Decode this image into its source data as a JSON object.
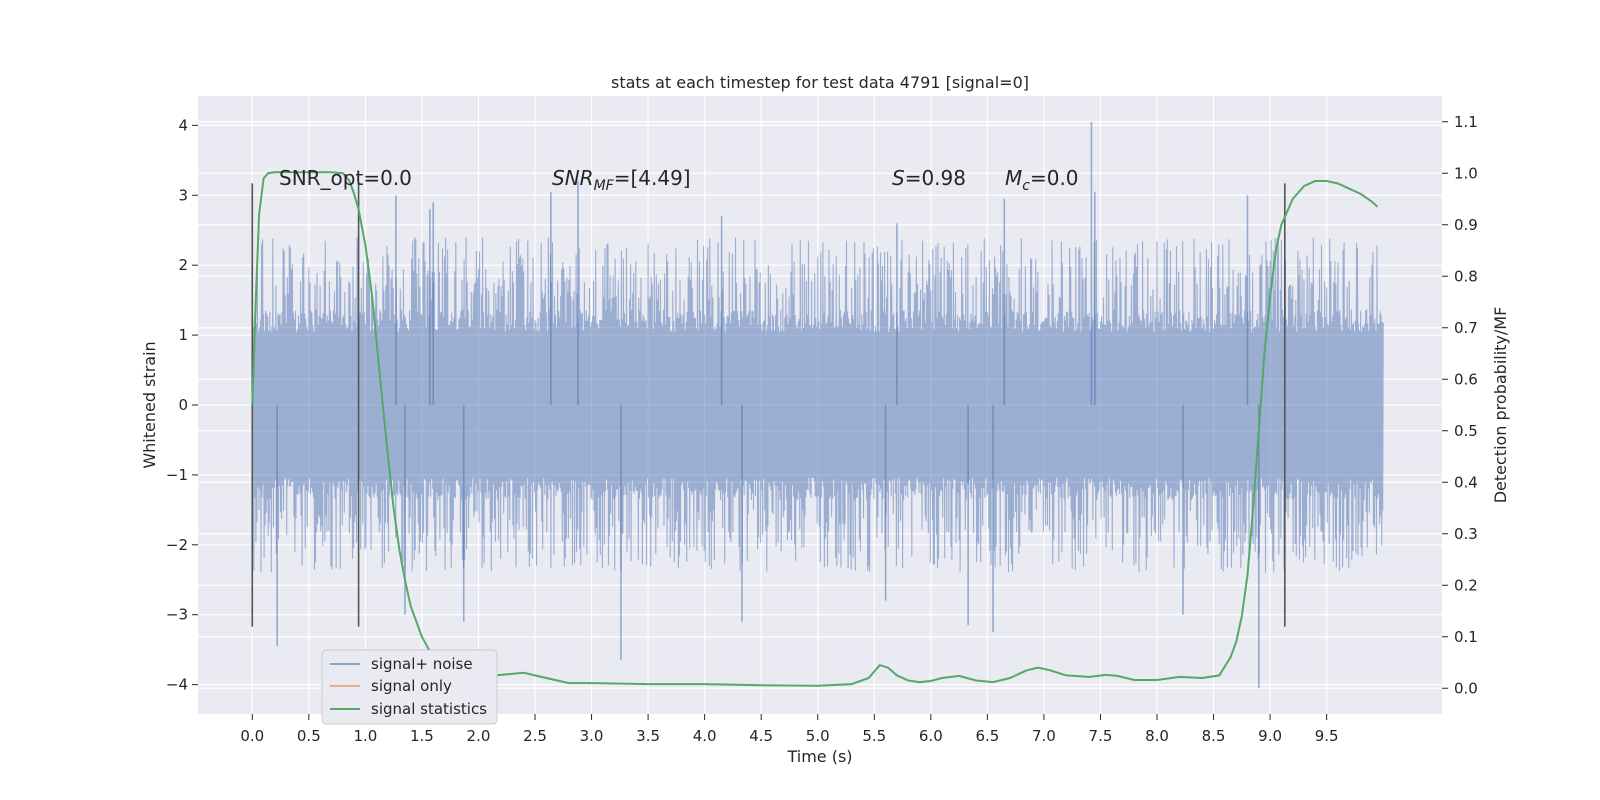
{
  "chart_data": {
    "type": "line",
    "title": "stats at each timestep for test data 4791 [signal=0]",
    "xlabel": "Time (s)",
    "ylabel": "Whitened strain",
    "y2label": "Detection probability/MF",
    "xlim": [
      -0.48,
      10.52
    ],
    "ylim": [
      -4.42,
      4.42
    ],
    "y2lim": [
      -0.05,
      1.15
    ],
    "xticks": [
      "0.0",
      "0.5",
      "1.0",
      "1.5",
      "2.0",
      "2.5",
      "3.0",
      "3.5",
      "4.0",
      "4.5",
      "5.0",
      "5.5",
      "6.0",
      "6.5",
      "7.0",
      "7.5",
      "8.0",
      "8.5",
      "9.0",
      "9.5"
    ],
    "yticks": [
      "−4",
      "−3",
      "−2",
      "−1",
      "0",
      "1",
      "2",
      "3",
      "4"
    ],
    "y2ticks": [
      "0.0",
      "0.1",
      "0.2",
      "0.3",
      "0.4",
      "0.5",
      "0.6",
      "0.7",
      "0.8",
      "0.9",
      "1.0",
      "1.1"
    ],
    "grid": true,
    "legend_position": "lower-left",
    "annotations": {
      "snr_opt": "SNR_opt=0.0",
      "snr_mf_prefix": "SNR",
      "snr_mf_sub": "MF",
      "snr_mf_suffix": "=[4.49]",
      "s_var": "S",
      "s_value": "=0.98",
      "mc_var": "M",
      "mc_sub": "c",
      "mc_value": "=0.0"
    },
    "vertical_markers_x": [
      0.0,
      0.94,
      9.13
    ],
    "noise_envelope": {
      "x_start": 0.0,
      "x_end": 10.0,
      "dense_band": [
        -1.3,
        1.3
      ],
      "typical_peak_range": [
        1.5,
        2.4
      ],
      "upper_spikes": [
        {
          "x": 1.27,
          "y": 3.0
        },
        {
          "x": 1.57,
          "y": 2.8
        },
        {
          "x": 1.6,
          "y": 2.9
        },
        {
          "x": 2.64,
          "y": 3.05
        },
        {
          "x": 2.88,
          "y": 3.2
        },
        {
          "x": 7.42,
          "y": 4.05
        },
        {
          "x": 7.45,
          "y": 3.05
        },
        {
          "x": 6.65,
          "y": 2.95
        },
        {
          "x": 8.8,
          "y": 3.0
        },
        {
          "x": 4.15,
          "y": 2.7
        },
        {
          "x": 5.7,
          "y": 2.6
        }
      ],
      "lower_spikes": [
        {
          "x": 0.22,
          "y": -3.45
        },
        {
          "x": 1.87,
          "y": -3.1
        },
        {
          "x": 3.26,
          "y": -3.65
        },
        {
          "x": 4.33,
          "y": -3.1
        },
        {
          "x": 6.33,
          "y": -3.15
        },
        {
          "x": 6.55,
          "y": -3.25
        },
        {
          "x": 8.23,
          "y": -3.0
        },
        {
          "x": 8.9,
          "y": -4.05
        },
        {
          "x": 5.6,
          "y": -2.8
        },
        {
          "x": 1.35,
          "y": -3.0
        }
      ]
    },
    "series": [
      {
        "name": "signal+ noise",
        "color": "#4c72b0"
      },
      {
        "name": "signal only",
        "color": "#dd8452"
      },
      {
        "name": "signal statistics",
        "color": "#55a868",
        "axis": "right",
        "x": [
          0.0,
          0.03,
          0.06,
          0.1,
          0.14,
          0.2,
          0.3,
          0.4,
          0.5,
          0.6,
          0.7,
          0.8,
          0.86,
          0.9,
          0.94,
          1.0,
          1.06,
          1.1,
          1.15,
          1.2,
          1.25,
          1.3,
          1.35,
          1.4,
          1.5,
          1.6,
          1.7,
          1.8,
          1.9,
          2.0,
          2.2,
          2.4,
          2.6,
          2.8,
          3.0,
          3.5,
          4.0,
          4.5,
          5.0,
          5.3,
          5.45,
          5.55,
          5.62,
          5.7,
          5.8,
          5.9,
          6.0,
          6.1,
          6.25,
          6.4,
          6.55,
          6.7,
          6.85,
          6.95,
          7.05,
          7.2,
          7.4,
          7.55,
          7.65,
          7.8,
          8.0,
          8.2,
          8.4,
          8.55,
          8.65,
          8.7,
          8.75,
          8.8,
          8.85,
          8.9,
          8.95,
          9.0,
          9.05,
          9.1,
          9.2,
          9.3,
          9.4,
          9.5,
          9.6,
          9.7,
          9.8,
          9.9,
          9.95
        ],
        "values": [
          0.55,
          0.75,
          0.92,
          0.99,
          1.0,
          1.002,
          1.002,
          1.002,
          1.002,
          1.002,
          1.002,
          1.0,
          0.985,
          0.96,
          0.93,
          0.86,
          0.76,
          0.67,
          0.56,
          0.45,
          0.35,
          0.27,
          0.21,
          0.16,
          0.1,
          0.06,
          0.04,
          0.028,
          0.022,
          0.022,
          0.026,
          0.03,
          0.02,
          0.01,
          0.01,
          0.008,
          0.008,
          0.006,
          0.005,
          0.008,
          0.02,
          0.045,
          0.04,
          0.025,
          0.015,
          0.012,
          0.014,
          0.02,
          0.024,
          0.015,
          0.012,
          0.02,
          0.035,
          0.04,
          0.035,
          0.025,
          0.022,
          0.026,
          0.024,
          0.016,
          0.016,
          0.022,
          0.02,
          0.025,
          0.06,
          0.09,
          0.14,
          0.22,
          0.35,
          0.5,
          0.65,
          0.76,
          0.85,
          0.9,
          0.95,
          0.975,
          0.985,
          0.985,
          0.98,
          0.97,
          0.96,
          0.945,
          0.935
        ]
      }
    ]
  }
}
